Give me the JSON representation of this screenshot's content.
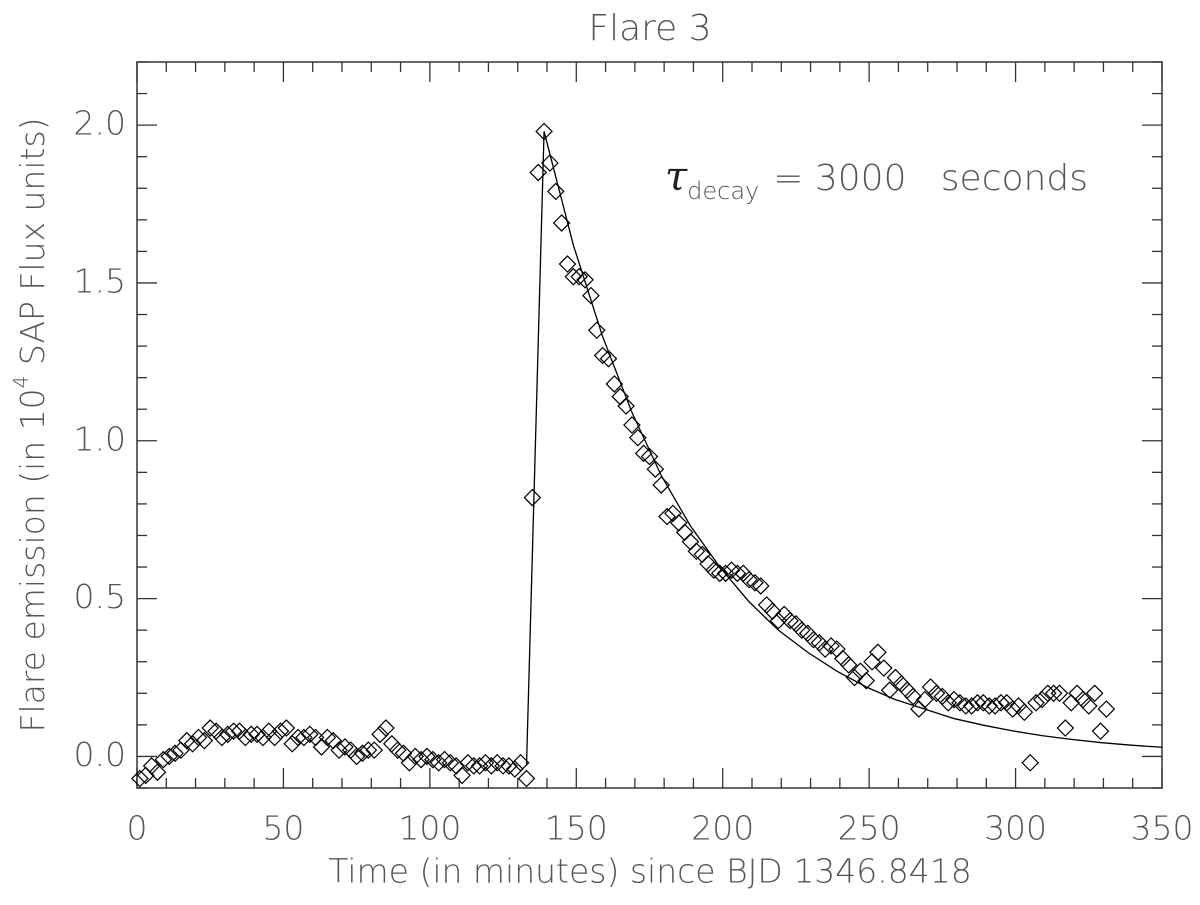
{
  "chart_data": {
    "type": "scatter",
    "title": "Flare 3",
    "x_label": "Time (in minutes) since BJD 1346.8418",
    "y_label": {
      "prefix": "Flare emission (in 10",
      "sup": "4",
      "suffix": " SAP Flux units)"
    },
    "annotation": {
      "symbol": "τ",
      "subscript": "decay",
      "text": "= 3000   seconds"
    },
    "xlim": [
      0,
      350
    ],
    "ylim": [
      -0.1,
      2.2
    ],
    "xticks": [
      0,
      50,
      100,
      150,
      200,
      250,
      300,
      350
    ],
    "yticks": [
      {
        "value": 0,
        "label": "0.0"
      },
      {
        "value": 0.5,
        "label": "0.5"
      },
      {
        "value": 1,
        "label": "1.0"
      },
      {
        "value": 1.5,
        "label": "1.5"
      },
      {
        "value": 2,
        "label": "2.0"
      }
    ],
    "xminorticks": [
      10,
      20,
      30,
      40,
      60,
      70,
      80,
      90,
      110,
      120,
      130,
      140,
      160,
      170,
      180,
      190,
      210,
      220,
      230,
      240,
      260,
      270,
      280,
      290,
      310,
      320,
      330,
      340
    ],
    "yminorticks": [
      -0.1,
      0.1,
      0.2,
      0.3,
      0.4,
      0.6,
      0.7,
      0.8,
      0.9,
      1.1,
      1.2,
      1.3,
      1.4,
      1.6,
      1.7,
      1.8,
      1.9,
      2.1,
      2.2
    ],
    "points": {
      "color": "#000",
      "x": [
        1,
        3,
        5,
        7,
        9,
        11,
        13,
        15,
        17,
        19,
        21,
        23,
        25,
        27,
        29,
        31,
        33,
        35,
        37,
        39,
        41,
        43,
        45,
        47,
        49,
        51,
        53,
        55,
        57,
        59,
        61,
        63,
        65,
        67,
        69,
        71,
        73,
        75,
        77,
        79,
        81,
        83,
        85,
        87,
        89,
        91,
        93,
        95,
        97,
        99,
        101,
        103,
        105,
        107,
        109,
        111,
        113,
        115,
        117,
        119,
        121,
        123,
        125,
        127,
        129,
        131,
        133,
        135,
        137,
        139,
        141,
        143,
        145,
        147,
        149,
        151,
        153,
        155,
        157,
        159,
        161,
        163,
        165,
        167,
        169,
        171,
        173,
        175,
        177,
        179,
        181,
        183,
        185,
        187,
        189,
        191,
        193,
        195,
        197,
        199,
        201,
        203,
        205,
        207,
        209,
        211,
        213,
        215,
        217,
        219,
        221,
        223,
        225,
        227,
        229,
        231,
        233,
        235,
        237,
        239,
        241,
        243,
        245,
        247,
        249,
        251,
        253,
        255,
        257,
        259,
        261,
        263,
        265,
        267,
        269,
        271,
        273,
        275,
        277,
        279,
        281,
        283,
        285,
        287,
        289,
        291,
        293,
        295,
        297,
        299,
        301,
        303,
        305,
        307,
        309,
        311,
        313,
        315,
        317,
        319,
        321,
        323,
        325,
        327,
        329,
        331
      ],
      "values": [
        -0.07,
        -0.06,
        -0.03,
        -0.05,
        -0.01,
        0.0,
        0.01,
        0.02,
        0.05,
        0.04,
        0.06,
        0.05,
        0.09,
        0.08,
        0.06,
        0.07,
        0.08,
        0.08,
        0.06,
        0.07,
        0.07,
        0.06,
        0.08,
        0.06,
        0.08,
        0.09,
        0.04,
        0.06,
        0.06,
        0.07,
        0.06,
        0.03,
        0.06,
        0.05,
        0.02,
        0.03,
        0.02,
        0.0,
        0.01,
        0.02,
        0.02,
        0.07,
        0.09,
        0.04,
        0.02,
        0.01,
        -0.02,
        0.0,
        -0.01,
        0.0,
        -0.01,
        -0.02,
        -0.01,
        -0.02,
        -0.03,
        -0.06,
        -0.02,
        -0.03,
        -0.03,
        -0.02,
        -0.03,
        -0.02,
        -0.03,
        -0.03,
        -0.04,
        -0.02,
        -0.07,
        0.82,
        1.85,
        1.98,
        1.88,
        1.79,
        1.69,
        1.56,
        1.52,
        1.52,
        1.51,
        1.46,
        1.35,
        1.27,
        1.26,
        1.18,
        1.14,
        1.11,
        1.05,
        1.01,
        0.96,
        0.95,
        0.91,
        0.86,
        0.76,
        0.77,
        0.74,
        0.71,
        0.68,
        0.65,
        0.64,
        0.61,
        0.59,
        0.58,
        0.58,
        0.59,
        0.58,
        0.58,
        0.56,
        0.55,
        0.54,
        0.48,
        0.46,
        0.43,
        0.45,
        0.43,
        0.42,
        0.4,
        0.39,
        0.37,
        0.36,
        0.34,
        0.35,
        0.34,
        0.31,
        0.29,
        0.25,
        0.27,
        0.24,
        0.3,
        0.33,
        0.28,
        0.21,
        0.25,
        0.23,
        0.21,
        0.19,
        0.15,
        0.18,
        0.22,
        0.2,
        0.19,
        0.17,
        0.18,
        0.17,
        0.16,
        0.16,
        0.17,
        0.17,
        0.16,
        0.16,
        0.17,
        0.17,
        0.15,
        0.16,
        0.14,
        -0.02,
        0.17,
        0.18,
        0.2,
        0.2,
        0.2,
        0.09,
        0.17,
        0.2,
        0.18,
        0.16,
        0.2,
        0.08,
        0.15
      ]
    },
    "fit": {
      "color": "#000",
      "x": [
        133,
        139,
        149,
        159,
        169,
        179,
        189,
        199,
        209,
        219,
        229,
        239,
        249,
        259,
        269,
        279,
        289,
        299,
        309,
        319,
        329,
        339,
        350
      ],
      "values": [
        -0.03,
        1.98,
        1.62,
        1.33,
        1.09,
        0.89,
        0.73,
        0.6,
        0.49,
        0.4,
        0.33,
        0.27,
        0.22,
        0.18,
        0.15,
        0.12,
        0.099,
        0.081,
        0.066,
        0.054,
        0.044,
        0.036,
        0.029
      ]
    }
  }
}
